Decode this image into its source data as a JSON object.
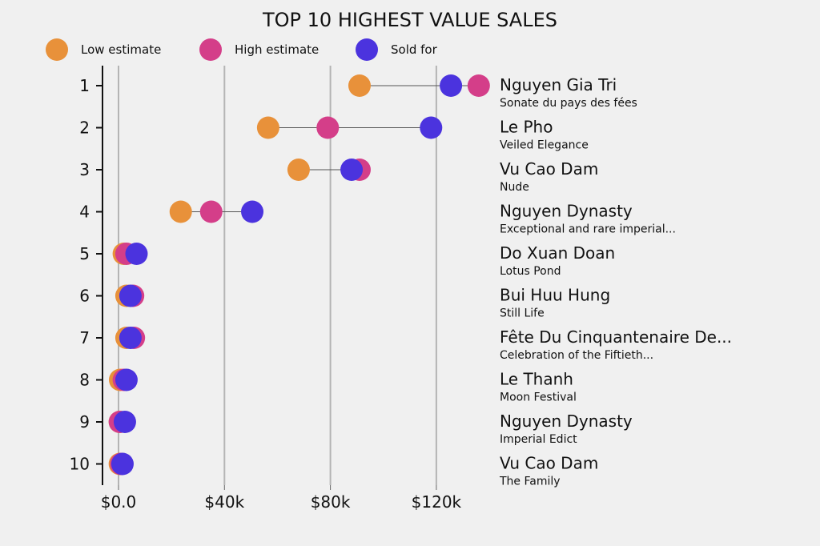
{
  "chart_data": {
    "type": "dot-plot",
    "title": "TOP 10 HIGHEST VALUE SALES",
    "legend": [
      {
        "name": "Low estimate",
        "color": "#E8913A"
      },
      {
        "name": "High estimate",
        "color": "#D43E89"
      },
      {
        "name": "Sold for",
        "color": "#4B33DE"
      }
    ],
    "legend_placement": "top",
    "xlim": [
      0,
      150000
    ],
    "xticks": [
      0,
      40000,
      80000,
      120000
    ],
    "xtick_labels": [
      "$0.0",
      "$40k",
      "$80k",
      "$120k"
    ],
    "grid": "vertical",
    "rows": [
      {
        "rank": "1",
        "artist": "Nguyen Gia Tri",
        "work": "Sonate du pays des fées",
        "low": 91000,
        "high": 136000,
        "sold": 125500
      },
      {
        "rank": "2",
        "artist": "Le Pho",
        "work": "Veiled Elegance",
        "low": 56500,
        "high": 79000,
        "sold": 118000
      },
      {
        "rank": "3",
        "artist": "Vu Cao Dam",
        "work": "Nude",
        "low": 68000,
        "high": 91000,
        "sold": 88000
      },
      {
        "rank": "4",
        "artist": "Nguyen Dynasty",
        "work": "Exceptional and rare imperial...",
        "low": 23500,
        "high": 35000,
        "sold": 50500
      },
      {
        "rank": "5",
        "artist": "Do Xuan Doan",
        "work": "Lotus Pond",
        "low": 2000,
        "high": 3000,
        "sold": 6800
      },
      {
        "rank": "6",
        "artist": "Bui Huu Hung",
        "work": "Still Life",
        "low": 3000,
        "high": 5500,
        "sold": 4500
      },
      {
        "rank": "7",
        "artist": "Fête Du Cinquantenaire De...",
        "work": "Celebration of the Fiftieth...",
        "low": 3000,
        "high": 5800,
        "sold": 4500
      },
      {
        "rank": "8",
        "artist": "Le Thanh",
        "work": "Moon Festival",
        "low": 600,
        "high": 2000,
        "sold": 3000
      },
      {
        "rank": "9",
        "artist": "Nguyen Dynasty",
        "work": "Imperial Edict",
        "low": 500,
        "high": 500,
        "sold": 2400
      },
      {
        "rank": "10",
        "artist": "Vu Cao Dam",
        "work": "The Family",
        "low": 500,
        "high": 1000,
        "sold": 1500
      }
    ]
  }
}
